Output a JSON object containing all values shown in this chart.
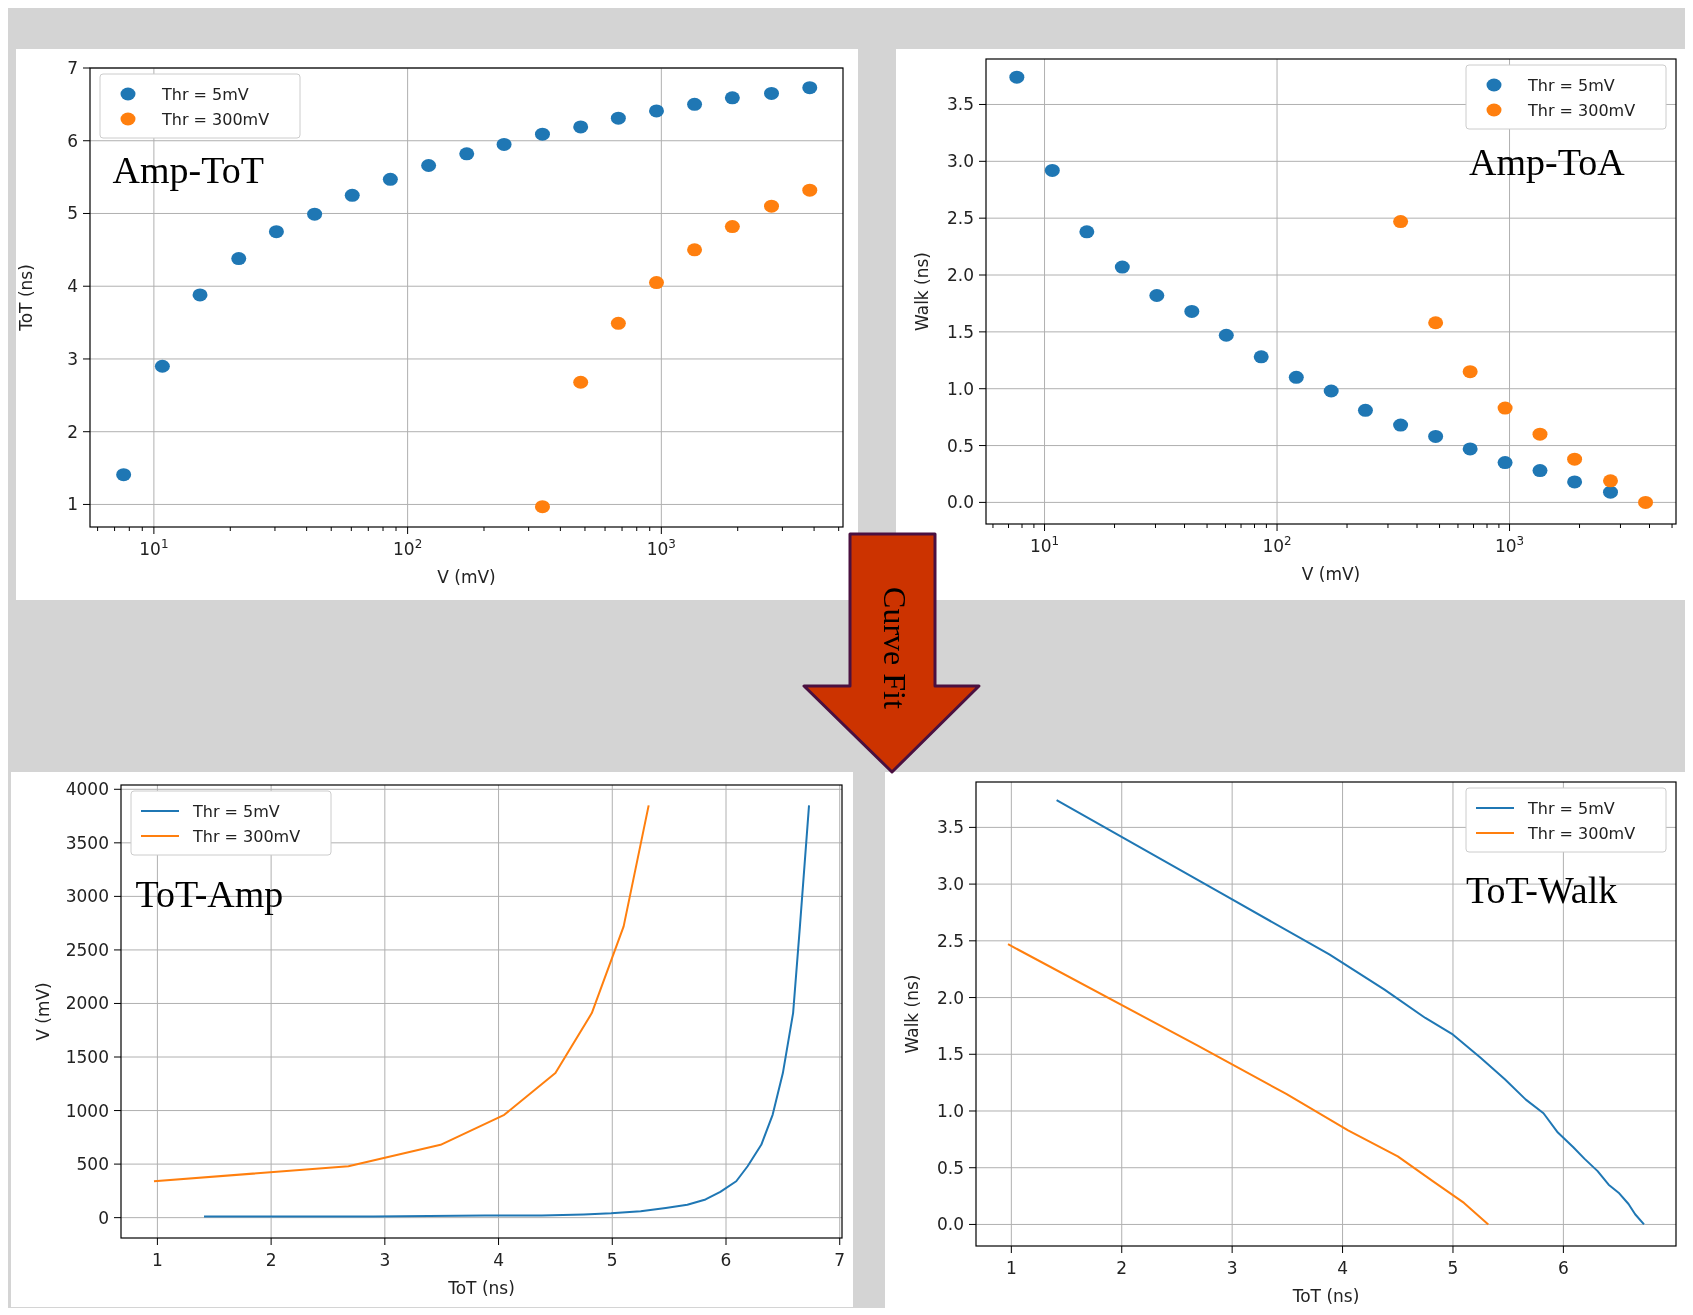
{
  "chart_data": [
    {
      "type": "scatter",
      "title": "Amp-ToT",
      "xlabel": "V (mV)",
      "ylabel": "ToT (ns)",
      "log": "x",
      "xlim": [
        5.6,
        5200
      ],
      "ylim": [
        0.69,
        7
      ],
      "xticks": [
        {
          "value": 6,
          "label": null
        },
        {
          "value": 7,
          "label": null
        },
        {
          "value": 8,
          "label": null
        },
        {
          "value": 9,
          "label": null
        },
        {
          "value": 10,
          "label": "10$^{1}$"
        },
        {
          "value": 20,
          "label": null
        },
        {
          "value": 30,
          "label": null
        },
        {
          "value": 40,
          "label": null
        },
        {
          "value": 50,
          "label": null
        },
        {
          "value": 60,
          "label": null
        },
        {
          "value": 70,
          "label": null
        },
        {
          "value": 80,
          "label": null
        },
        {
          "value": 90,
          "label": null
        },
        {
          "value": 100,
          "label": "10$^{2}$"
        },
        {
          "value": 200,
          "label": null
        },
        {
          "value": 300,
          "label": null
        },
        {
          "value": 400,
          "label": null
        },
        {
          "value": 500,
          "label": null
        },
        {
          "value": 600,
          "label": null
        },
        {
          "value": 700,
          "label": null
        },
        {
          "value": 800,
          "label": null
        },
        {
          "value": 900,
          "label": null
        },
        {
          "value": 1000,
          "label": "10$^{3}$"
        },
        {
          "value": 2000,
          "label": null
        },
        {
          "value": 3000,
          "label": null
        },
        {
          "value": 4000,
          "label": null
        },
        {
          "value": 5000,
          "label": null
        }
      ],
      "yticks": [
        1,
        2,
        3,
        4,
        5,
        6,
        7
      ],
      "grid": true,
      "legend": "top left",
      "marker": "circle",
      "x": [
        7.6,
        10.8,
        15.2,
        21.6,
        30.4,
        43,
        60.5,
        85.5,
        121,
        171,
        240,
        340,
        481,
        677,
        957,
        1352,
        1905,
        2718,
        3846
      ],
      "series": [
        {
          "name": "Thr = 5mV",
          "color": "#1f77b4",
          "values": [
            1.41,
            2.9,
            3.88,
            4.38,
            4.75,
            4.99,
            5.25,
            5.47,
            5.66,
            5.82,
            5.95,
            6.09,
            6.19,
            6.31,
            6.41,
            6.5,
            6.59,
            6.65,
            6.73
          ]
        },
        {
          "name": "Thr = 300mV",
          "color": "#ff7f0e",
          "values": [
            null,
            null,
            null,
            null,
            null,
            null,
            null,
            null,
            null,
            null,
            null,
            0.97,
            2.68,
            3.49,
            4.05,
            4.5,
            4.82,
            5.1,
            5.32
          ]
        }
      ],
      "annotations": [
        "Curve Fit"
      ]
    },
    {
      "type": "scatter",
      "title": "Amp-ToA",
      "xlabel": "V (mV)",
      "ylabel": "Walk (ns)",
      "log": "x",
      "xlim": [
        5.6,
        5200
      ],
      "ylim": [
        -0.19,
        3.9
      ],
      "xticks": [
        {
          "value": 6,
          "label": null
        },
        {
          "value": 7,
          "label": null
        },
        {
          "value": 8,
          "label": null
        },
        {
          "value": 9,
          "label": null
        },
        {
          "value": 10,
          "label": "10$^{1}$"
        },
        {
          "value": 20,
          "label": null
        },
        {
          "value": 30,
          "label": null
        },
        {
          "value": 40,
          "label": null
        },
        {
          "value": 50,
          "label": null
        },
        {
          "value": 60,
          "label": null
        },
        {
          "value": 70,
          "label": null
        },
        {
          "value": 80,
          "label": null
        },
        {
          "value": 90,
          "label": null
        },
        {
          "value": 100,
          "label": "10$^{2}$"
        },
        {
          "value": 200,
          "label": null
        },
        {
          "value": 300,
          "label": null
        },
        {
          "value": 400,
          "label": null
        },
        {
          "value": 500,
          "label": null
        },
        {
          "value": 600,
          "label": null
        },
        {
          "value": 700,
          "label": null
        },
        {
          "value": 800,
          "label": null
        },
        {
          "value": 900,
          "label": null
        },
        {
          "value": 1000,
          "label": "10$^{3}$"
        },
        {
          "value": 2000,
          "label": null
        },
        {
          "value": 3000,
          "label": null
        },
        {
          "value": 4000,
          "label": null
        },
        {
          "value": 5000,
          "label": null
        }
      ],
      "yticks": [
        {
          "value": 0,
          "label": "0.0"
        },
        0.5,
        {
          "value": 1,
          "label": "1.0"
        },
        1.5,
        {
          "value": 2,
          "label": "2.0"
        },
        2.5,
        {
          "value": 3,
          "label": "3.0"
        },
        3.5
      ],
      "grid": true,
      "legend": "top right",
      "marker": "circle",
      "x": [
        7.6,
        10.8,
        15.2,
        21.6,
        30.4,
        43,
        60.5,
        85.5,
        121,
        171,
        240,
        340,
        481,
        677,
        957,
        1352,
        1905,
        2718,
        3846
      ],
      "series": [
        {
          "name": "Thr = 5mV",
          "color": "#1f77b4",
          "values": [
            3.74,
            2.92,
            2.38,
            2.07,
            1.82,
            1.68,
            1.47,
            1.28,
            1.1,
            0.98,
            0.81,
            0.68,
            0.58,
            0.47,
            0.35,
            0.28,
            0.18,
            0.09,
            null
          ]
        },
        {
          "name": "Thr = 300mV",
          "color": "#ff7f0e",
          "values": [
            null,
            null,
            null,
            null,
            null,
            null,
            null,
            null,
            null,
            null,
            null,
            2.47,
            1.58,
            1.15,
            0.83,
            0.6,
            0.38,
            0.19,
            0
          ]
        }
      ]
    },
    {
      "type": "line",
      "title": "ToT-Amp",
      "xlabel": "ToT (ns)",
      "ylabel": "V (mV)",
      "xlim": [
        0.68,
        7.02
      ],
      "ylim": [
        -190,
        4040
      ],
      "xticks": [
        1,
        2,
        3,
        4,
        5,
        6,
        7
      ],
      "yticks": [
        0,
        500,
        1000,
        1500,
        2000,
        2500,
        3000,
        3500,
        4000
      ],
      "grid": true,
      "legend": "top left",
      "series": [
        {
          "name": "Thr = 5mV",
          "color": "#1f77b4",
          "x": [
            1.41,
            2.9,
            3.88,
            4.38,
            4.75,
            4.99,
            5.25,
            5.47,
            5.66,
            5.82,
            5.95,
            6.09,
            6.19,
            6.31,
            6.41,
            6.5,
            6.59,
            6.65,
            6.73
          ],
          "values": [
            10,
            10,
            20,
            20,
            30,
            40,
            60,
            90,
            120,
            170,
            240,
            340,
            480,
            680,
            960,
            1350,
            1910,
            2720,
            3850
          ]
        },
        {
          "name": "Thr = 300mV",
          "color": "#ff7f0e",
          "x": [
            0.97,
            2.68,
            3.49,
            4.05,
            4.5,
            4.82,
            5.1,
            5.32
          ],
          "values": [
            340,
            480,
            680,
            960,
            1350,
            1910,
            2720,
            3850
          ]
        }
      ]
    },
    {
      "type": "line",
      "title": "ToT-Walk",
      "xlabel": "ToT (ns)",
      "ylabel": "Walk (ns)",
      "xlim": [
        0.68,
        7.02
      ],
      "ylim": [
        -0.19,
        3.9
      ],
      "xticks": [
        1,
        2,
        3,
        4,
        5,
        6
      ],
      "yticks": [
        {
          "value": 0,
          "label": "0.0"
        },
        0.5,
        {
          "value": 1,
          "label": "1.0"
        },
        1.5,
        {
          "value": 2,
          "label": "2.0"
        },
        2.5,
        {
          "value": 3,
          "label": "3.0"
        },
        3.5
      ],
      "grid": true,
      "legend": "top right",
      "series": [
        {
          "name": "Thr = 5mV",
          "color": "#1f77b4",
          "x": [
            1.41,
            2.9,
            3.88,
            4.38,
            4.75,
            4.99,
            5.25,
            5.47,
            5.66,
            5.82,
            5.95,
            6.09,
            6.19,
            6.31,
            6.41,
            6.5,
            6.59,
            6.65,
            6.73
          ],
          "values": [
            3.74,
            2.92,
            2.38,
            2.07,
            1.82,
            1.68,
            1.47,
            1.28,
            1.1,
            0.98,
            0.81,
            0.68,
            0.58,
            0.47,
            0.35,
            0.28,
            0.18,
            0.09,
            0
          ]
        },
        {
          "name": "Thr = 300mV",
          "color": "#ff7f0e",
          "x": [
            0.97,
            2.68,
            3.49,
            4.05,
            4.5,
            4.82,
            5.1,
            5.32
          ],
          "values": [
            2.47,
            1.58,
            1.15,
            0.83,
            0.6,
            0.38,
            0.19,
            0
          ]
        }
      ]
    }
  ]
}
